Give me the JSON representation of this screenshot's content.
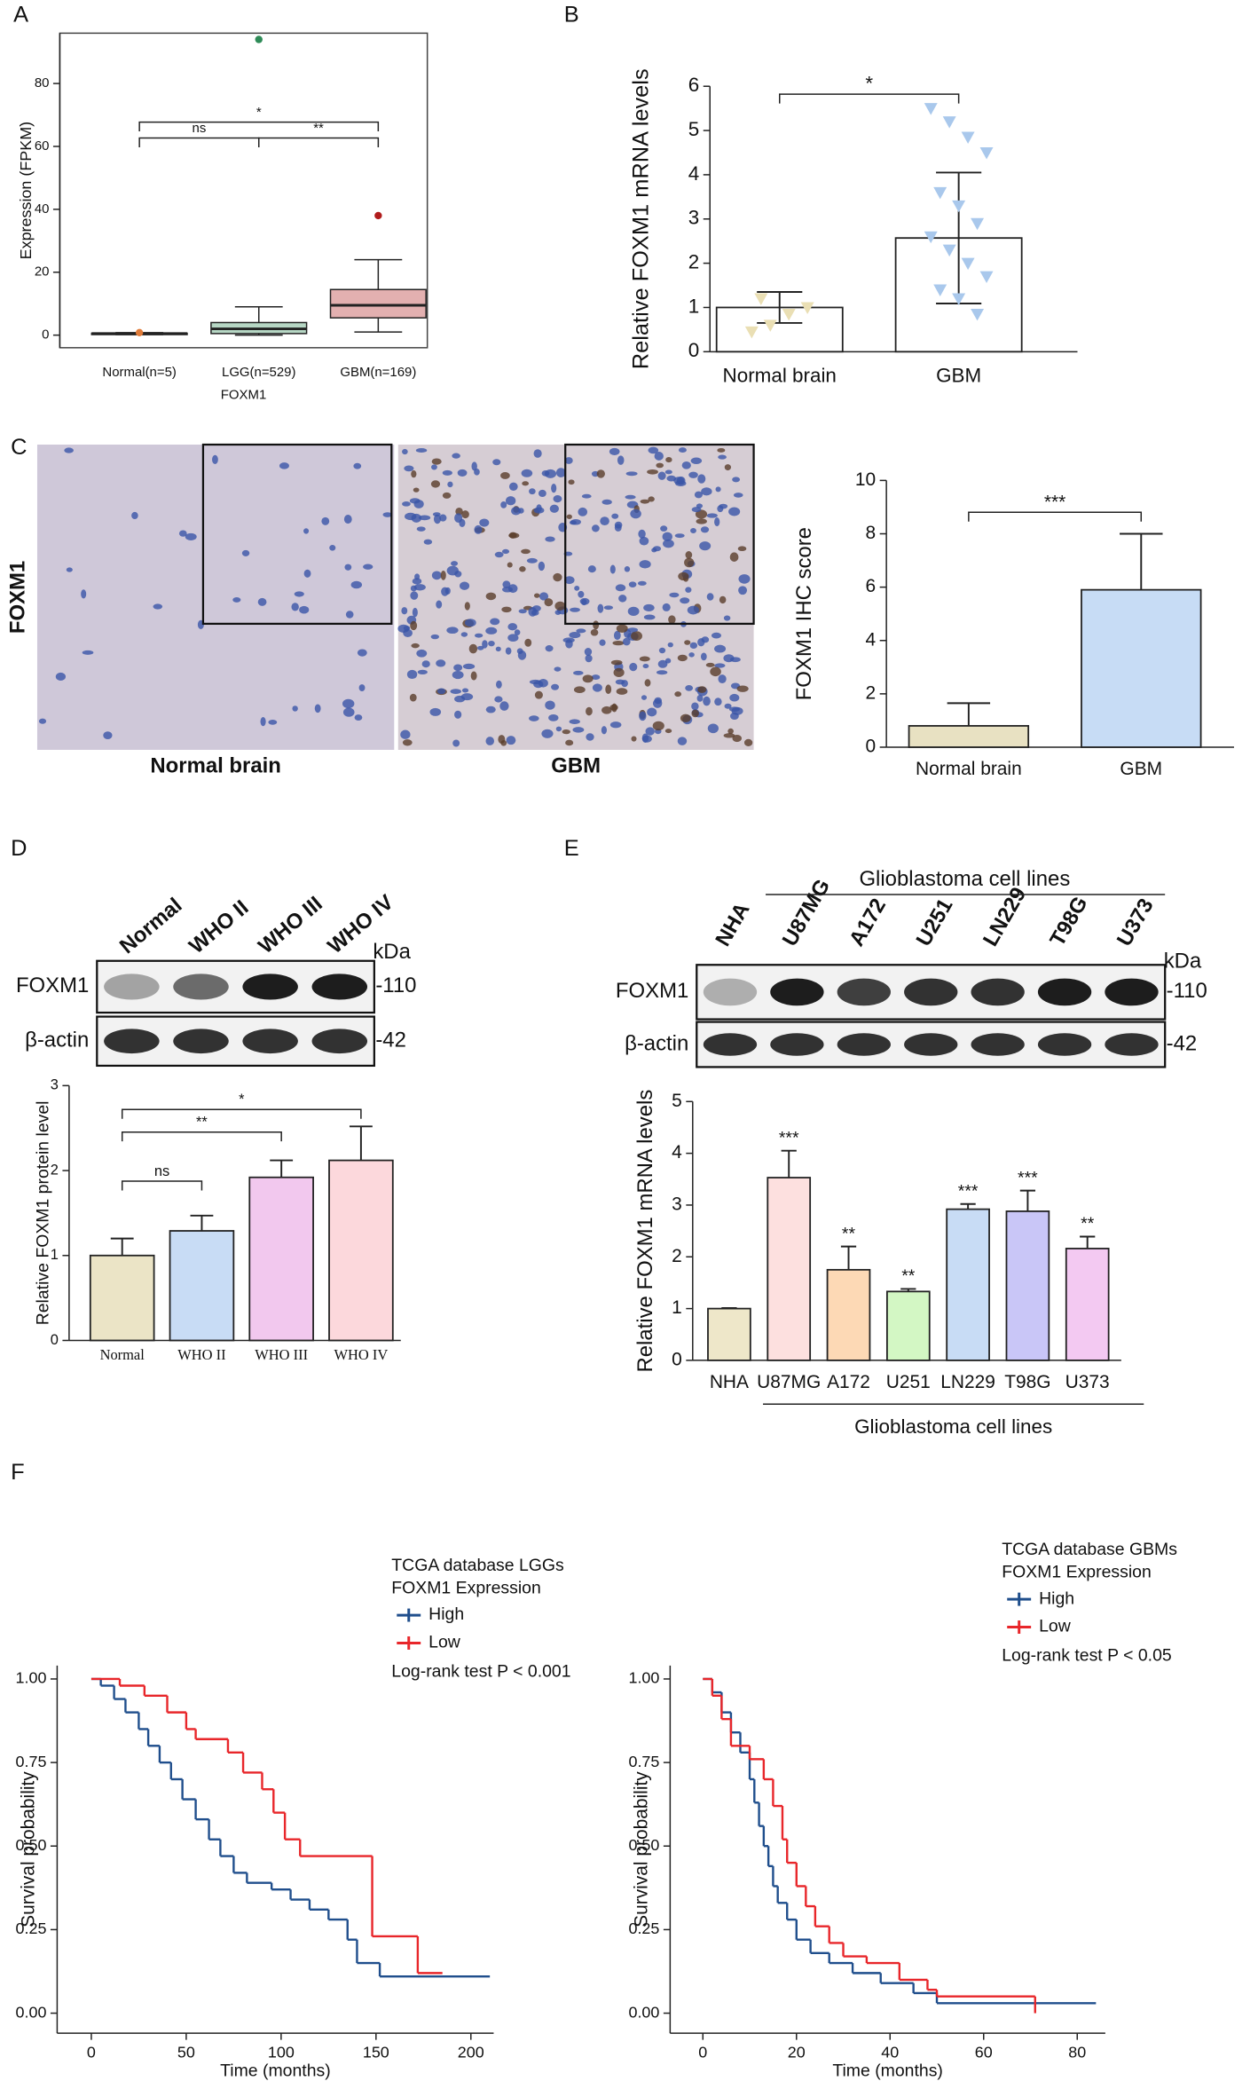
{
  "panel_labels": [
    "A",
    "B",
    "C",
    "D",
    "E",
    "F"
  ],
  "ihc": {
    "row_label": "FOXM1",
    "captions": [
      "Normal brain",
      "GBM"
    ]
  },
  "blot_d": {
    "lanes": [
      "Normal",
      "WHO II",
      "WHO III",
      "WHO IV"
    ],
    "unit": "kDa",
    "rows": [
      {
        "name": "FOXM1",
        "size": "-110"
      },
      {
        "name": "β-actin",
        "size": "-42"
      }
    ]
  },
  "blot_e": {
    "group": "Glioblastoma cell lines",
    "lanes": [
      "NHA",
      "U87MG",
      "A172",
      "U251",
      "LN229",
      "T98G",
      "U373"
    ],
    "unit": "kDa",
    "rows": [
      {
        "name": "FOXM1",
        "size": "-110"
      },
      {
        "name": "β-actin",
        "size": "-42"
      }
    ]
  },
  "chart_data": [
    {
      "type": "box",
      "ylabel": "Expression (FPKM)",
      "xlabel": "FOXM1",
      "categories": [
        "Normal(n=5)",
        "LGG(n=529)",
        "GBM(n=169)"
      ],
      "colors": [
        "#e07b39",
        "#2e8b57",
        "#b01c1c"
      ],
      "boxes": [
        {
          "low": 0.2,
          "q1": 0.3,
          "median": 0.5,
          "q3": 0.6,
          "high": 0.8
        },
        {
          "low": 0,
          "q1": 0.5,
          "median": 2,
          "q3": 4,
          "high": 9
        },
        {
          "low": 1,
          "q1": 5.5,
          "median": 9.5,
          "q3": 14.5,
          "high": 24
        }
      ],
      "max": [
        0.8,
        94,
        38
      ],
      "ylim": [
        -4,
        96
      ],
      "yticks": [
        0,
        20,
        40,
        60,
        80
      ],
      "annotations": [
        {
          "between": [
            0,
            1
          ],
          "label": "ns"
        },
        {
          "between": [
            1,
            2
          ],
          "label": "**"
        },
        {
          "between": [
            0,
            2
          ],
          "label": "*"
        }
      ]
    },
    {
      "type": "bar",
      "ylabel": "Relative FOXM1 mRNA levels",
      "categories": [
        "Normal brain",
        "GBM"
      ],
      "values": [
        1.0,
        2.57
      ],
      "errors": [
        0.35,
        1.48
      ],
      "error_direction": "both",
      "colors": [
        "#ffffff",
        "#ffffff"
      ],
      "point_colors": [
        "#eadfb4",
        "#a9c8ec"
      ],
      "points": [
        [
          0.45,
          0.6,
          0.85,
          1.0,
          1.2
        ],
        [
          5.5,
          5.2,
          4.85,
          4.5,
          3.6,
          3.3,
          2.9,
          2.6,
          2.3,
          2.0,
          1.7,
          1.4,
          1.2,
          0.85
        ]
      ],
      "ylim": [
        0,
        6
      ],
      "yticks": [
        0,
        1,
        2,
        3,
        4,
        5,
        6
      ],
      "annotations": [
        {
          "between": [
            0,
            1
          ],
          "label": "*"
        }
      ]
    },
    {
      "type": "bar",
      "ylabel": "FOXM1 IHC score",
      "categories": [
        "Normal brain",
        "GBM"
      ],
      "values": [
        0.8,
        5.9
      ],
      "errors": [
        0.85,
        2.1
      ],
      "error_direction": "up",
      "colors": [
        "#e8e1c2",
        "#c7dcf5"
      ],
      "ylim": [
        0,
        10
      ],
      "yticks": [
        0,
        2,
        4,
        6,
        8,
        10
      ],
      "annotations": [
        {
          "between": [
            0,
            1
          ],
          "label": "***"
        }
      ]
    },
    {
      "type": "bar",
      "ylabel": "Relative FOXM1 protein level",
      "categories": [
        "Normal",
        "WHO II",
        "WHO III",
        "WHO IV"
      ],
      "values": [
        1.0,
        1.29,
        1.92,
        2.12
      ],
      "errors": [
        0.2,
        0.18,
        0.2,
        0.4
      ],
      "error_direction": "up",
      "colors": [
        "#ebe4c6",
        "#c8dcf5",
        "#f2c8ee",
        "#fcd8dc"
      ],
      "ylim": [
        0,
        3
      ],
      "yticks": [
        0,
        1,
        2,
        3
      ],
      "annotations": [
        {
          "between": [
            0,
            1
          ],
          "label": "ns"
        },
        {
          "between": [
            0,
            2
          ],
          "label": "**"
        },
        {
          "between": [
            0,
            3
          ],
          "label": "*"
        }
      ]
    },
    {
      "type": "bar",
      "ylabel": "Relative FOXM1 mRNA levels",
      "xlabel": "Glioblastoma cell lines",
      "categories": [
        "NHA",
        "U87MG",
        "A172",
        "U251",
        "LN229",
        "T98G",
        "U373"
      ],
      "values": [
        1.0,
        3.53,
        1.75,
        1.33,
        2.92,
        2.88,
        2.16
      ],
      "errors": [
        0.01,
        0.52,
        0.45,
        0.05,
        0.1,
        0.4,
        0.23
      ],
      "error_direction": "up",
      "significance": [
        null,
        "***",
        "**",
        "**",
        "***",
        "***",
        "**"
      ],
      "colors": [
        "#eee7c9",
        "#fde0df",
        "#fdd9b5",
        "#d3f7c4",
        "#c8dcf5",
        "#c9c6f7",
        "#f3c9f2"
      ],
      "ylim": [
        0,
        5
      ],
      "yticks": [
        0,
        1,
        2,
        3,
        4,
        5
      ]
    },
    {
      "type": "line",
      "title": "TCGA database LGGs",
      "legend_title": "FOXM1 Expression",
      "note": "Log-rank test P < 0.001",
      "ylabel": "Survival probability",
      "xlabel": "Time (months)",
      "xlim": [
        -18,
        212
      ],
      "xticks": [
        0,
        50,
        100,
        150,
        200
      ],
      "ylim": [
        -0.06,
        1.04
      ],
      "yticks": [
        {
          "value": 0,
          "label": "0.00"
        },
        0.25,
        {
          "value": 0.5,
          "label": "0.50"
        },
        0.75,
        {
          "value": 1,
          "label": "1.00"
        }
      ],
      "series": [
        {
          "name": "High",
          "color": "#1f4e8c",
          "x": [
            0,
            5,
            12,
            18,
            25,
            30,
            36,
            42,
            48,
            55,
            62,
            68,
            75,
            82,
            95,
            105,
            115,
            125,
            135,
            140,
            152,
            210
          ],
          "values": [
            1,
            0.98,
            0.94,
            0.9,
            0.85,
            0.8,
            0.75,
            0.7,
            0.64,
            0.58,
            0.52,
            0.47,
            0.42,
            0.39,
            0.37,
            0.34,
            0.31,
            0.28,
            0.22,
            0.15,
            0.11,
            0.11
          ]
        },
        {
          "name": "Low",
          "color": "#e8262a",
          "x": [
            0,
            15,
            28,
            40,
            50,
            55,
            72,
            80,
            90,
            96,
            102,
            110,
            148,
            172,
            185
          ],
          "values": [
            1,
            0.98,
            0.95,
            0.9,
            0.85,
            0.82,
            0.78,
            0.72,
            0.67,
            0.6,
            0.52,
            0.47,
            0.23,
            0.12,
            0.12
          ]
        }
      ]
    },
    {
      "type": "line",
      "title": "TCGA database GBMs",
      "legend_title": "FOXM1 Expression",
      "note": "Log-rank test P < 0.05",
      "ylabel": "Survival probability",
      "xlabel": "Time (months)",
      "xlim": [
        -7,
        86
      ],
      "xticks": [
        0,
        20,
        40,
        60,
        80
      ],
      "ylim": [
        -0.06,
        1.04
      ],
      "yticks": [
        {
          "value": 0,
          "label": "0.00"
        },
        0.25,
        {
          "value": 0.5,
          "label": "0.50"
        },
        0.75,
        {
          "value": 1,
          "label": "1.00"
        }
      ],
      "series": [
        {
          "name": "High",
          "color": "#1f4e8c",
          "x": [
            0,
            2,
            4,
            6,
            8,
            10,
            11,
            12,
            13,
            14,
            15,
            16,
            18,
            20,
            23,
            27,
            32,
            38,
            45,
            50,
            84
          ],
          "values": [
            1,
            0.96,
            0.9,
            0.84,
            0.78,
            0.7,
            0.63,
            0.56,
            0.5,
            0.44,
            0.38,
            0.33,
            0.28,
            0.22,
            0.18,
            0.15,
            0.12,
            0.09,
            0.06,
            0.03,
            0.03
          ]
        },
        {
          "name": "Low",
          "color": "#e8262a",
          "x": [
            0,
            2,
            4,
            6,
            10,
            13,
            15,
            17,
            18,
            20,
            22,
            24,
            27,
            30,
            35,
            42,
            48,
            50,
            71
          ],
          "values": [
            1,
            0.95,
            0.88,
            0.8,
            0.76,
            0.7,
            0.62,
            0.52,
            0.45,
            0.38,
            0.32,
            0.26,
            0.21,
            0.17,
            0.15,
            0.1,
            0.07,
            0.05,
            0
          ]
        }
      ]
    }
  ]
}
